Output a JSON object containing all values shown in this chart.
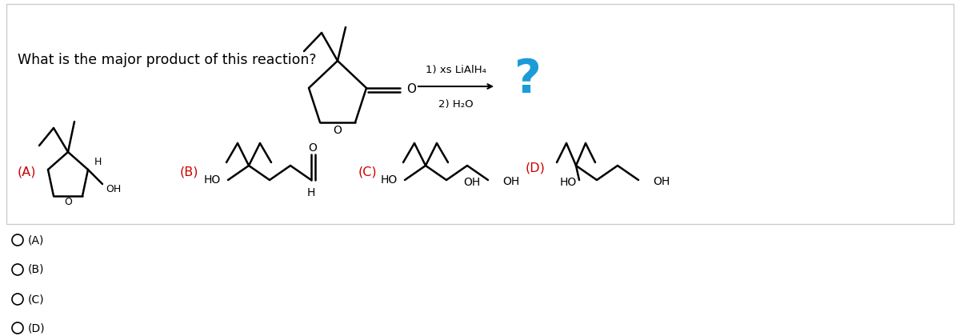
{
  "title_text": "What is the major product of this reaction?",
  "bg_color": "#ffffff",
  "border_color": "#cccccc",
  "reaction_conditions_1": "1) xs LiAlH₄",
  "reaction_conditions_2": "2) H₂O",
  "question_mark_color": "#1B9CD8",
  "label_color": "#cc0000",
  "radio_options": [
    "(A)",
    "(B)",
    "(C)",
    "(D)"
  ]
}
